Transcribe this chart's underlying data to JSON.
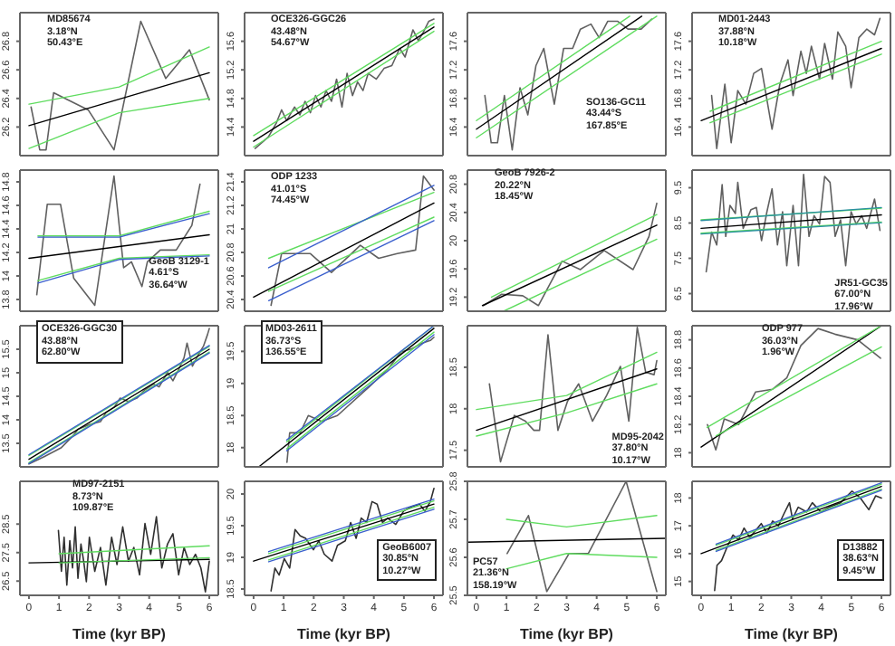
{
  "chart_data": [
    {
      "type": "line",
      "annotations": [
        "MD85674",
        "3.18°N",
        "50.43°E"
      ],
      "xlim": [
        -0.3,
        6.3
      ],
      "xticks": [
        0,
        1,
        2,
        3,
        4,
        5,
        6
      ],
      "ylim": [
        26.0,
        27.0
      ],
      "yticks": [
        26.2,
        26.4,
        26.6,
        26.8
      ],
      "tick_labels": "y",
      "series": [
        {
          "color": "#606060",
          "x": [
            0.07,
            0.36,
            0.57,
            0.82,
            1.97,
            2.83,
            3.72,
            4.55,
            5.34,
            6.0
          ],
          "values": [
            26.34,
            26.04,
            26.04,
            26.44,
            26.32,
            26.04,
            26.94,
            26.54,
            26.74,
            26.39
          ]
        },
        {
          "color": "#000000",
          "x": [
            0,
            6
          ],
          "values": [
            26.21,
            26.58
          ]
        },
        {
          "color": "#5fdc5f",
          "x": [
            0,
            3,
            6
          ],
          "values": [
            26.36,
            26.48,
            26.76
          ]
        },
        {
          "color": "#5fdc5f",
          "x": [
            0,
            3,
            6
          ],
          "values": [
            26.05,
            26.3,
            26.4
          ]
        }
      ]
    },
    {
      "type": "line",
      "annotations": [
        "OCE326-GGC26",
        "43.48°N",
        "54.67°W"
      ],
      "xlim": [
        -0.3,
        6.3
      ],
      "xticks": [
        0,
        1,
        2,
        3,
        4,
        5,
        6
      ],
      "ylim": [
        14.0,
        16.0
      ],
      "yticks": [
        14.4,
        14.8,
        15.2,
        15.6
      ],
      "tick_labels": "y",
      "series": [
        {
          "color": "#606060",
          "x": [
            0.05,
            0.49,
            0.75,
            0.93,
            1.1,
            1.36,
            1.54,
            1.71,
            1.89,
            2.06,
            2.24,
            2.41,
            2.59,
            2.76,
            2.94,
            3.11,
            3.29,
            3.46,
            3.64,
            3.81,
            4.08,
            4.34,
            4.6,
            4.86,
            5.04,
            5.3,
            5.48,
            5.65,
            5.83,
            6.0
          ],
          "values": [
            14.1,
            14.26,
            14.45,
            14.64,
            14.49,
            14.68,
            14.57,
            14.76,
            14.6,
            14.84,
            14.68,
            14.91,
            14.76,
            15.07,
            14.68,
            15.15,
            14.84,
            15.03,
            14.91,
            15.15,
            15.07,
            15.22,
            15.26,
            15.5,
            15.38,
            15.76,
            15.61,
            15.73,
            15.88,
            15.91
          ]
        },
        {
          "color": "#000000",
          "x": [
            0,
            6
          ],
          "values": [
            14.2,
            15.8
          ]
        },
        {
          "color": "#5fdc5f",
          "x": [
            0,
            6
          ],
          "values": [
            14.28,
            15.85
          ]
        },
        {
          "color": "#5fdc5f",
          "x": [
            0,
            6
          ],
          "values": [
            14.12,
            15.74
          ]
        }
      ]
    },
    {
      "type": "line",
      "annotations": [
        "SO136-GC11",
        "43.44°S",
        "167.85°E"
      ],
      "xlim": [
        -0.3,
        6.3
      ],
      "xticks": [
        0,
        1,
        2,
        3,
        4,
        5,
        6
      ],
      "ylim": [
        16.0,
        18.0
      ],
      "yticks": [
        16.4,
        16.8,
        17.2,
        17.6
      ],
      "tick_labels": "y",
      "series": [
        {
          "color": "#606060",
          "x": [
            0.28,
            0.49,
            0.7,
            0.93,
            1.19,
            1.45,
            1.71,
            1.98,
            2.24,
            2.59,
            2.9,
            3.2,
            3.46,
            3.81,
            4.08,
            4.37,
            4.69,
            5.04,
            5.48,
            5.83
          ],
          "values": [
            16.84,
            16.18,
            16.18,
            16.84,
            16.08,
            16.95,
            16.57,
            17.26,
            17.5,
            16.72,
            17.5,
            17.5,
            17.77,
            17.84,
            17.65,
            17.88,
            17.88,
            17.77,
            17.77,
            17.91
          ]
        },
        {
          "color": "#000000",
          "x": [
            0,
            5.5
          ],
          "values": [
            16.37,
            17.95
          ]
        },
        {
          "color": "#5fdc5f",
          "x": [
            0,
            5.1
          ],
          "values": [
            16.49,
            17.95
          ]
        },
        {
          "color": "#5fdc5f",
          "x": [
            0,
            6
          ],
          "values": [
            16.25,
            17.95
          ]
        }
      ]
    },
    {
      "type": "line",
      "annotations": [
        "MD01-2443",
        "37.88°N",
        "10.18°W"
      ],
      "xlim": [
        -0.3,
        6.3
      ],
      "xticks": [
        0,
        1,
        2,
        3,
        4,
        5,
        6
      ],
      "ylim": [
        16.0,
        18.0
      ],
      "yticks": [
        16.4,
        16.8,
        17.2,
        17.6
      ],
      "tick_labels": "y",
      "series": [
        {
          "color": "#606060",
          "x": [
            0.35,
            0.52,
            0.79,
            1.0,
            1.22,
            1.49,
            1.75,
            2.01,
            2.36,
            2.62,
            2.89,
            3.06,
            3.32,
            3.5,
            3.67,
            3.94,
            4.11,
            4.37,
            4.55,
            4.81,
            4.99,
            5.25,
            5.51,
            5.77,
            5.95
          ],
          "values": [
            16.84,
            16.1,
            17.0,
            16.18,
            16.91,
            16.72,
            17.15,
            17.22,
            16.37,
            17.0,
            17.34,
            16.84,
            17.46,
            17.15,
            17.53,
            17.07,
            17.57,
            17.07,
            17.73,
            17.53,
            16.95,
            17.65,
            17.77,
            17.69,
            17.92
          ]
        },
        {
          "color": "#000000",
          "x": [
            0,
            6
          ],
          "values": [
            16.49,
            17.5
          ]
        },
        {
          "color": "#5fdc5f",
          "x": [
            0.3,
            6
          ],
          "values": [
            16.62,
            17.6
          ]
        },
        {
          "color": "#5fdc5f",
          "x": [
            0.3,
            6
          ],
          "values": [
            16.46,
            17.42
          ]
        }
      ]
    },
    {
      "type": "line",
      "annotations": [
        "GeoB 3129-1",
        "4.61°S",
        "36.64°W"
      ],
      "xlim": [
        -0.3,
        6.3
      ],
      "xticks": [
        0,
        1,
        2,
        3,
        4,
        5,
        6
      ],
      "ylim": [
        13.7,
        14.9
      ],
      "yticks": [
        13.8,
        14.0,
        14.2,
        14.4,
        14.6,
        14.8
      ],
      "tick_labels": "y",
      "series": [
        {
          "color": "#606060",
          "x": [
            0.26,
            0.61,
            1.05,
            1.49,
            2.19,
            2.83,
            3.15,
            3.41,
            3.76,
            3.94,
            4.37,
            4.9,
            5.42,
            5.69
          ],
          "values": [
            13.84,
            14.61,
            14.61,
            13.98,
            13.75,
            14.85,
            14.07,
            14.12,
            13.91,
            14.12,
            14.22,
            14.22,
            14.43,
            14.78
          ]
        },
        {
          "color": "#000000",
          "x": [
            0,
            6
          ],
          "values": [
            14.15,
            14.35
          ]
        },
        {
          "color": "#5fdc5f",
          "x": [
            0.3,
            3,
            6
          ],
          "values": [
            14.34,
            14.34,
            14.55
          ]
        },
        {
          "color": "#5fdc5f",
          "x": [
            0.3,
            3,
            6
          ],
          "values": [
            13.96,
            14.15,
            14.18
          ]
        },
        {
          "color": "#3a5fcd",
          "x": [
            0.3,
            3,
            6
          ],
          "values": [
            14.33,
            14.33,
            14.53
          ]
        },
        {
          "color": "#3a5fcd",
          "x": [
            0.3,
            3,
            6
          ],
          "values": [
            13.94,
            14.14,
            14.17
          ]
        }
      ]
    },
    {
      "type": "line",
      "annotations": [
        "ODP 1233",
        "41.01°S",
        "74.45°W"
      ],
      "xlim": [
        -0.3,
        6.3
      ],
      "xticks": [
        0,
        1,
        2,
        3,
        4,
        5,
        6
      ],
      "ylim": [
        20.3,
        21.5
      ],
      "yticks": [
        20.4,
        20.6,
        20.8,
        21.0,
        21.2,
        21.4
      ],
      "tick_labels": "y",
      "series": [
        {
          "color": "#606060",
          "x": [
            0.58,
            0.93,
            1.89,
            2.59,
            3.55,
            4.16,
            4.78,
            5.39,
            5.65,
            6.0
          ],
          "values": [
            20.35,
            20.79,
            20.79,
            20.63,
            20.86,
            20.75,
            20.79,
            20.82,
            21.45,
            21.33
          ]
        },
        {
          "color": "#000000",
          "x": [
            0,
            6
          ],
          "values": [
            20.42,
            21.22
          ]
        },
        {
          "color": "#5fdc5f",
          "x": [
            0.5,
            6
          ],
          "values": [
            20.75,
            21.31
          ]
        },
        {
          "color": "#5fdc5f",
          "x": [
            0.5,
            6
          ],
          "values": [
            20.47,
            21.1
          ]
        },
        {
          "color": "#3a5fcd",
          "x": [
            0.5,
            6
          ],
          "values": [
            20.67,
            21.37
          ]
        },
        {
          "color": "#3a5fcd",
          "x": [
            0.5,
            6
          ],
          "values": [
            20.39,
            21.07
          ]
        }
      ]
    },
    {
      "type": "line",
      "annotations": [
        "GeoB 7926-2",
        "20.22°N",
        "18.45°W"
      ],
      "xlim": [
        -0.3,
        6.3
      ],
      "xticks": [
        0,
        1,
        2,
        3,
        4,
        5,
        6
      ],
      "ylim": [
        19.0,
        21.0
      ],
      "yticks": [
        19.2,
        19.6,
        20.0,
        20.4,
        20.8
      ],
      "tick_labels": "y",
      "series": [
        {
          "color": "#606060",
          "x": [
            0.23,
            0.84,
            1.54,
            2.06,
            2.85,
            3.46,
            4.25,
            5.21,
            5.74,
            6.0
          ],
          "values": [
            19.08,
            19.24,
            19.22,
            19.08,
            19.71,
            19.59,
            19.86,
            19.59,
            20.06,
            20.53
          ]
        },
        {
          "color": "#000000",
          "x": [
            0.2,
            6
          ],
          "values": [
            19.08,
            20.22
          ]
        },
        {
          "color": "#5fdc5f",
          "x": [
            0.5,
            6
          ],
          "values": [
            19.2,
            20.37
          ]
        },
        {
          "color": "#5fdc5f",
          "x": [
            0.9,
            6
          ],
          "values": [
            19.0,
            20.02
          ]
        }
      ]
    },
    {
      "type": "line",
      "annotations": [
        "JR51-GC35",
        "67.00°N",
        "17.96°W"
      ],
      "xlim": [
        -0.3,
        6.3
      ],
      "xticks": [
        0,
        1,
        2,
        3,
        4,
        5,
        6
      ],
      "ylim": [
        6.0,
        10.0
      ],
      "yticks": [
        6.5,
        7.5,
        8.5,
        9.5
      ],
      "tick_labels": "y",
      "series": [
        {
          "color": "#606060",
          "x": [
            0.17,
            0.35,
            0.52,
            0.7,
            0.82,
            0.96,
            1.14,
            1.22,
            1.4,
            1.66,
            1.84,
            2.01,
            2.19,
            2.36,
            2.54,
            2.71,
            2.85,
            3.06,
            3.24,
            3.41,
            3.59,
            3.76,
            3.94,
            4.11,
            4.29,
            4.46,
            4.64,
            4.81,
            4.99,
            5.16,
            5.34,
            5.51,
            5.77,
            5.95
          ],
          "values": [
            7.12,
            8.24,
            7.88,
            9.59,
            8.12,
            9.0,
            8.77,
            9.65,
            8.35,
            8.88,
            8.94,
            8.0,
            8.82,
            9.47,
            7.88,
            8.82,
            7.29,
            9.0,
            7.29,
            9.88,
            8.12,
            8.71,
            8.47,
            9.82,
            9.65,
            8.12,
            8.59,
            7.29,
            8.82,
            8.47,
            8.71,
            8.35,
            9.18,
            8.29
          ]
        },
        {
          "color": "#000000",
          "x": [
            0,
            6
          ],
          "values": [
            8.35,
            8.73
          ]
        },
        {
          "color": "#5fdc5f",
          "x": [
            0,
            6
          ],
          "values": [
            8.59,
            8.92
          ]
        },
        {
          "color": "#5fdc5f",
          "x": [
            0,
            6
          ],
          "values": [
            8.21,
            8.53
          ]
        },
        {
          "color": "#2a8fa0",
          "x": [
            0,
            6
          ],
          "values": [
            8.57,
            8.94
          ]
        },
        {
          "color": "#2a8fa0",
          "x": [
            0,
            6
          ],
          "values": [
            8.19,
            8.51
          ]
        }
      ]
    },
    {
      "type": "line",
      "annotations": [
        "OCE326-GGC30",
        "43.88°N",
        "62.80°W"
      ],
      "xlim": [
        -0.3,
        6.3
      ],
      "xticks": [
        0,
        1,
        2,
        3,
        4,
        5,
        6
      ],
      "ylim": [
        13.0,
        16.0
      ],
      "yticks": [
        13.5,
        14.0,
        14.5,
        15.0,
        15.5
      ],
      "tick_labels": "y",
      "series": [
        {
          "color": "#606060",
          "x": [
            0,
            0.52,
            1.08,
            1.45,
            1.63,
            2.01,
            2.38,
            2.56,
            2.84,
            3.03,
            3.31,
            3.59,
            3.86,
            4.14,
            4.33,
            4.61,
            4.79,
            4.98,
            5.16,
            5.26,
            5.44,
            5.63,
            5.81,
            5.94,
            6.0
          ],
          "values": [
            13.06,
            13.22,
            13.41,
            13.65,
            13.8,
            13.9,
            13.96,
            14.15,
            14.27,
            14.46,
            14.39,
            14.46,
            14.64,
            14.76,
            14.7,
            15.01,
            14.83,
            15.07,
            15.32,
            15.63,
            15.14,
            15.38,
            15.57,
            15.81,
            15.94
          ]
        },
        {
          "color": "#000000",
          "x": [
            0,
            6
          ],
          "values": [
            13.16,
            15.5
          ]
        },
        {
          "color": "#5fdc5f",
          "x": [
            0,
            6
          ],
          "values": [
            13.24,
            15.56
          ]
        },
        {
          "color": "#5fdc5f",
          "x": [
            0,
            6
          ],
          "values": [
            13.09,
            15.44
          ]
        },
        {
          "color": "#3a5fcd",
          "x": [
            0,
            6
          ],
          "values": [
            13.26,
            15.58
          ]
        },
        {
          "color": "#3a5fcd",
          "x": [
            0,
            6
          ],
          "values": [
            13.07,
            15.42
          ]
        }
      ]
    },
    {
      "type": "line",
      "annotations": [
        "MD03-2611",
        "36.73°S",
        "136.55°E"
      ],
      "xlim": [
        -0.3,
        6.3
      ],
      "xticks": [
        0,
        1,
        2,
        3,
        4,
        5,
        6
      ],
      "ylim": [
        17.7,
        19.9
      ],
      "yticks": [
        18.0,
        18.5,
        19.0,
        19.5
      ],
      "tick_labels": "y",
      "series": [
        {
          "color": "#606060",
          "x": [
            1.11,
            1.2,
            1.55,
            1.82,
            2.26,
            2.79,
            3.85,
            4.46,
            4.91,
            5.26,
            5.61,
            5.88,
            6.0
          ],
          "values": [
            17.77,
            18.23,
            18.23,
            18.5,
            18.41,
            18.5,
            18.95,
            19.22,
            19.49,
            19.54,
            19.63,
            19.67,
            19.72
          ]
        },
        {
          "color": "#000000",
          "x": [
            0.2,
            6
          ],
          "values": [
            17.71,
            19.86
          ]
        },
        {
          "color": "#5fdc5f",
          "x": [
            1.1,
            6
          ],
          "values": [
            18.09,
            19.9
          ]
        },
        {
          "color": "#5fdc5f",
          "x": [
            1.1,
            6
          ],
          "values": [
            17.98,
            19.8
          ]
        },
        {
          "color": "#3a5fcd",
          "x": [
            1.1,
            6
          ],
          "values": [
            18.12,
            19.9
          ]
        },
        {
          "color": "#3a5fcd",
          "x": [
            1.1,
            6
          ],
          "values": [
            17.95,
            19.76
          ]
        }
      ]
    },
    {
      "type": "line",
      "annotations": [
        "MD95-2042",
        "37.80°N",
        "10.17°W"
      ],
      "xlim": [
        -0.3,
        6.3
      ],
      "xticks": [
        0,
        1,
        2,
        3,
        4,
        5,
        6
      ],
      "ylim": [
        17.3,
        19.0
      ],
      "yticks": [
        17.5,
        18.0,
        18.5
      ],
      "tick_labels": "y",
      "series": [
        {
          "color": "#606060",
          "x": [
            0.43,
            0.8,
            1.26,
            1.63,
            1.91,
            2.1,
            2.38,
            2.71,
            3.03,
            3.4,
            3.86,
            4.33,
            4.79,
            5.07,
            5.35,
            5.63,
            5.91,
            6.0
          ],
          "values": [
            18.3,
            17.36,
            17.92,
            17.85,
            17.74,
            17.74,
            18.89,
            17.74,
            18.09,
            18.3,
            17.85,
            18.16,
            18.51,
            17.85,
            18.98,
            18.44,
            18.41,
            18.58
          ]
        },
        {
          "color": "#000000",
          "x": [
            0,
            6
          ],
          "values": [
            17.74,
            18.48
          ]
        },
        {
          "color": "#5fdc5f",
          "x": [
            0,
            3,
            6
          ],
          "values": [
            17.99,
            18.16,
            18.68
          ]
        },
        {
          "color": "#5fdc5f",
          "x": [
            0,
            3,
            6
          ],
          "values": [
            17.67,
            17.95,
            18.3
          ]
        }
      ]
    },
    {
      "type": "line",
      "annotations": [
        "ODP 977",
        "36.03°N",
        "1.96°W"
      ],
      "xlim": [
        -0.3,
        6.3
      ],
      "xticks": [
        0,
        1,
        2,
        3,
        4,
        5,
        6
      ],
      "ylim": [
        17.9,
        18.9
      ],
      "yticks": [
        18.0,
        18.2,
        18.4,
        18.6,
        18.8
      ],
      "tick_labels": "y",
      "series": [
        {
          "color": "#606060",
          "x": [
            0.21,
            0.49,
            0.77,
            1.25,
            1.81,
            2.38,
            2.85,
            3.32,
            3.89,
            4.45,
            5.21,
            5.97
          ],
          "values": [
            18.2,
            18.02,
            18.24,
            18.2,
            18.43,
            18.45,
            18.53,
            18.76,
            18.88,
            18.84,
            18.8,
            18.67
          ]
        },
        {
          "color": "#000000",
          "x": [
            0,
            6
          ],
          "values": [
            18.04,
            18.9
          ]
        },
        {
          "color": "#5fdc5f",
          "x": [
            0.2,
            6
          ],
          "values": [
            18.18,
            18.9
          ]
        },
        {
          "color": "#5fdc5f",
          "x": [
            0.5,
            6
          ],
          "values": [
            18.12,
            18.75
          ]
        }
      ]
    },
    {
      "type": "line",
      "annotations": [
        "MD97-2151",
        "8.73°N",
        "109.87°E"
      ],
      "xlabel": "Time (kyr BP)",
      "xlim": [
        -0.3,
        6.3
      ],
      "xticks": [
        0,
        1,
        2,
        3,
        4,
        5,
        6
      ],
      "ylim": [
        26.0,
        30.0
      ],
      "yticks": [
        26.5,
        27.5,
        28.5
      ],
      "series": [
        {
          "color": "#303030",
          "x": [
            0.98,
            1.08,
            1.17,
            1.26,
            1.36,
            1.45,
            1.54,
            1.63,
            1.73,
            1.82,
            1.91,
            2.01,
            2.19,
            2.38,
            2.56,
            2.75,
            2.93,
            3.12,
            3.31,
            3.49,
            3.68,
            3.86,
            4.05,
            4.24,
            4.42,
            4.61,
            4.79,
            4.98,
            5.16,
            5.35,
            5.54,
            5.72,
            5.87,
            6.0
          ],
          "values": [
            28.28,
            26.84,
            28.04,
            26.36,
            27.92,
            26.96,
            28.4,
            26.6,
            27.8,
            27.2,
            26.48,
            28.04,
            26.84,
            27.68,
            26.36,
            28.04,
            27.08,
            28.4,
            27.2,
            27.68,
            26.72,
            28.52,
            27.44,
            28.76,
            26.96,
            27.8,
            28.16,
            26.72,
            27.68,
            27.08,
            27.44,
            26.96,
            26.12,
            27.2
          ]
        },
        {
          "color": "#000000",
          "x": [
            0,
            6
          ],
          "values": [
            27.14,
            27.26
          ]
        },
        {
          "color": "#5fdc5f",
          "x": [
            1,
            6
          ],
          "values": [
            27.46,
            27.74
          ]
        },
        {
          "color": "#5fdc5f",
          "x": [
            1,
            6
          ],
          "values": [
            27.14,
            27.32
          ]
        }
      ]
    },
    {
      "type": "line",
      "annotations": [
        "GeoB6007",
        "30.85°N",
        "10.27°W"
      ],
      "xlabel": "Time (kyr BP)",
      "xlim": [
        -0.3,
        6.3
      ],
      "xticks": [
        0,
        1,
        2,
        3,
        4,
        5,
        6
      ],
      "ylim": [
        18.4,
        20.2
      ],
      "yticks": [
        18.5,
        19.0,
        19.5,
        20.0
      ],
      "series": [
        {
          "color": "#303030",
          "x": [
            0.58,
            0.71,
            0.85,
            1.02,
            1.2,
            1.38,
            1.55,
            1.73,
            1.99,
            2.17,
            2.35,
            2.61,
            2.79,
            3.05,
            3.23,
            3.41,
            3.58,
            3.76,
            3.94,
            4.11,
            4.29,
            4.46,
            4.73,
            4.99,
            5.26,
            5.52,
            5.7,
            5.88,
            6.0
          ],
          "values": [
            18.47,
            18.83,
            18.72,
            18.98,
            18.83,
            19.44,
            19.34,
            19.3,
            19.12,
            19.26,
            19.05,
            18.94,
            19.19,
            19.26,
            19.55,
            19.3,
            19.62,
            19.55,
            19.88,
            19.84,
            19.55,
            19.62,
            19.52,
            19.73,
            19.8,
            19.84,
            19.73,
            19.88,
            20.09
          ]
        },
        {
          "color": "#000000",
          "x": [
            0,
            6
          ],
          "values": [
            18.94,
            19.84
          ]
        },
        {
          "color": "#5fdc5f",
          "x": [
            0.5,
            6
          ],
          "values": [
            19.06,
            19.89
          ]
        },
        {
          "color": "#5fdc5f",
          "x": [
            0.5,
            6
          ],
          "values": [
            18.96,
            19.79
          ]
        },
        {
          "color": "#3a5fcd",
          "x": [
            0.5,
            6
          ],
          "values": [
            19.09,
            19.92
          ]
        },
        {
          "color": "#3a5fcd",
          "x": [
            0.5,
            6
          ],
          "values": [
            18.93,
            19.76
          ]
        }
      ]
    },
    {
      "type": "line",
      "annotations": [
        "PC57",
        "21.36°N",
        "158.19°W"
      ],
      "xlabel": "Time (kyr BP)",
      "xlim": [
        -0.3,
        6.3
      ],
      "xticks": [
        0,
        1,
        2,
        3,
        4,
        5,
        6
      ],
      "ylim": [
        25.5,
        25.8
      ],
      "yticks": [
        25.5,
        25.6,
        25.7,
        25.8
      ],
      "series": [
        {
          "color": "#606060",
          "x": [
            1.02,
            1.73,
            2.34,
            3.08,
            3.72,
            4.98,
            6.0
          ],
          "values": [
            25.61,
            25.71,
            25.51,
            25.61,
            25.61,
            25.8,
            25.51
          ]
        },
        {
          "color": "#000000",
          "x": [
            -0.3,
            6.3
          ],
          "values": [
            25.64,
            25.65
          ]
        },
        {
          "color": "#5fdc5f",
          "x": [
            1,
            3,
            6
          ],
          "values": [
            25.7,
            25.68,
            25.71
          ]
        },
        {
          "color": "#5fdc5f",
          "x": [
            1,
            3,
            6
          ],
          "values": [
            25.57,
            25.61,
            25.6
          ]
        }
      ]
    },
    {
      "type": "line",
      "annotations": [
        "D13882",
        "38.63°N",
        "9.45°W"
      ],
      "xlabel": "Time (kyr BP)",
      "xlim": [
        -0.3,
        6.3
      ],
      "xticks": [
        0,
        1,
        2,
        3,
        4,
        5,
        6
      ],
      "ylim": [
        14.5,
        18.6
      ],
      "yticks": [
        15,
        16,
        17,
        18
      ],
      "series": [
        {
          "color": "#303030",
          "x": [
            0.45,
            0.53,
            0.68,
            0.87,
            1.06,
            1.25,
            1.43,
            1.62,
            1.81,
            2.0,
            2.19,
            2.38,
            2.57,
            2.75,
            2.94,
            3.04,
            3.23,
            3.51,
            3.7,
            3.98,
            4.26,
            4.64,
            5.02,
            5.3,
            5.58,
            5.81,
            6.0
          ],
          "values": [
            14.67,
            15.58,
            15.75,
            16.25,
            16.67,
            16.5,
            16.92,
            16.58,
            16.83,
            17.08,
            16.75,
            17.17,
            17.0,
            17.42,
            17.83,
            17.25,
            17.67,
            17.5,
            17.83,
            17.5,
            17.67,
            17.83,
            18.25,
            18.0,
            17.58,
            18.08,
            18.0
          ]
        },
        {
          "color": "#000000",
          "x": [
            0,
            6
          ],
          "values": [
            16.0,
            18.42
          ]
        },
        {
          "color": "#5fdc5f",
          "x": [
            0.5,
            6
          ],
          "values": [
            16.3,
            18.5
          ]
        },
        {
          "color": "#5fdc5f",
          "x": [
            0.5,
            6
          ],
          "values": [
            16.12,
            18.32
          ]
        },
        {
          "color": "#3a5fcd",
          "x": [
            0.5,
            6
          ],
          "values": [
            16.34,
            18.55
          ]
        },
        {
          "color": "#3a5fcd",
          "x": [
            0.5,
            6
          ],
          "values": [
            16.08,
            18.28
          ]
        }
      ]
    }
  ]
}
